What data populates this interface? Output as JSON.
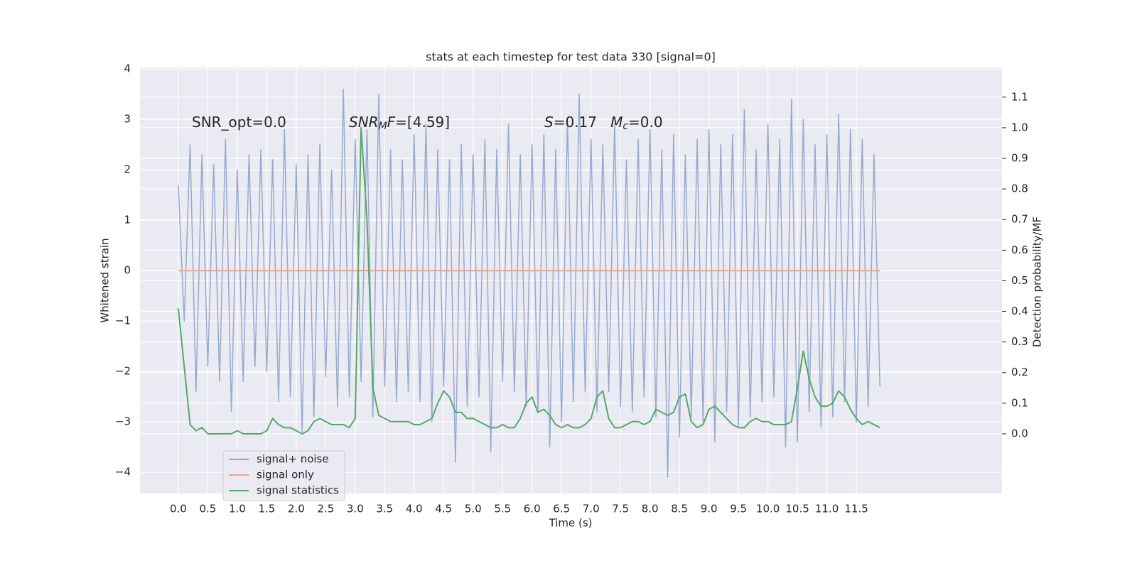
{
  "chart_data": {
    "type": "line",
    "title": "stats at each timestep for test data 330 [signal=0]",
    "xlabel": "Time (s)",
    "ylabel": "Whitened strain",
    "y2label": "Detection probability/MF",
    "xlim": [
      -0.65,
      13.97
    ],
    "ylim": [
      -4.42,
      4.03
    ],
    "y2lim": [
      -0.195,
      1.197
    ],
    "xticks": [
      {
        "value": 0,
        "label": "0.0"
      },
      0.5,
      {
        "value": 1,
        "label": "1.0"
      },
      1.5,
      {
        "value": 2,
        "label": "2.0"
      },
      2.5,
      {
        "value": 3,
        "label": "3.0"
      },
      3.5,
      {
        "value": 4,
        "label": "4.0"
      },
      4.5,
      {
        "value": 5,
        "label": "5.0"
      },
      5.5,
      {
        "value": 6,
        "label": "6.0"
      },
      6.5,
      {
        "value": 7,
        "label": "7.0"
      },
      7.5,
      {
        "value": 8,
        "label": "8.0"
      },
      8.5,
      {
        "value": 9,
        "label": "9.0"
      },
      9.5,
      {
        "value": 10,
        "label": "10.0"
      },
      10.5,
      {
        "value": 11,
        "label": "11.0"
      },
      11.5
    ],
    "yticks": [
      {
        "value": -4,
        "label": "−4"
      },
      {
        "value": -3,
        "label": "−3"
      },
      {
        "value": -2,
        "label": "−2"
      },
      {
        "value": -1,
        "label": "−1"
      },
      0,
      1,
      2,
      3,
      4
    ],
    "y2ticks": [
      {
        "value": 0,
        "label": "0.0"
      },
      0.1,
      0.2,
      0.3,
      0.4,
      0.5,
      0.6,
      0.7,
      0.8,
      0.9,
      {
        "value": 1,
        "label": "1.0"
      },
      1.1
    ],
    "grid": true,
    "legend": "lower left",
    "annotations": [
      [
        {
          "text": "SNR_opt=0.0"
        }
      ],
      [
        {
          "text": "SNR",
          "italic": true
        },
        {
          "text": "M",
          "italic": true,
          "sub": true
        },
        {
          "text": "F",
          "italic": true
        },
        {
          "text": "=[4.59]"
        }
      ],
      [
        {
          "text": "S",
          "italic": true
        },
        {
          "text": "=0.17   "
        },
        {
          "text": "M",
          "italic": true
        },
        {
          "text": "c",
          "italic": true,
          "sub": true
        },
        {
          "text": "=0.0"
        }
      ]
    ],
    "x": [
      0.0,
      0.1,
      0.2,
      0.3,
      0.4,
      0.5,
      0.6,
      0.7,
      0.8,
      0.9,
      1.0,
      1.1,
      1.2,
      1.3,
      1.4,
      1.5,
      1.6,
      1.7,
      1.8,
      1.9,
      2.0,
      2.1,
      2.2,
      2.3,
      2.4,
      2.5,
      2.6,
      2.7,
      2.8,
      2.9,
      3.0,
      3.1,
      3.2,
      3.3,
      3.4,
      3.5,
      3.6,
      3.7,
      3.8,
      3.9,
      4.0,
      4.1,
      4.2,
      4.3,
      4.4,
      4.5,
      4.6,
      4.7,
      4.8,
      4.9,
      5.0,
      5.1,
      5.2,
      5.3,
      5.4,
      5.5,
      5.6,
      5.7,
      5.8,
      5.9,
      6.0,
      6.1,
      6.2,
      6.3,
      6.4,
      6.5,
      6.6,
      6.7,
      6.8,
      6.9,
      7.0,
      7.1,
      7.2,
      7.3,
      7.4,
      7.5,
      7.6,
      7.7,
      7.8,
      7.9,
      8.0,
      8.1,
      8.2,
      8.3,
      8.4,
      8.5,
      8.6,
      8.7,
      8.8,
      8.9,
      9.0,
      9.1,
      9.2,
      9.3,
      9.4,
      9.5,
      9.6,
      9.7,
      9.8,
      9.9,
      10.0,
      10.1,
      10.2,
      10.3,
      10.4,
      10.5,
      10.6,
      10.7,
      10.8,
      10.9,
      11.0,
      11.1,
      11.2,
      11.3,
      11.4,
      11.5,
      11.6,
      11.7,
      11.8,
      11.9
    ],
    "series": [
      {
        "name": "signal+ noise",
        "color": "#98a9cf",
        "values": [
          1.7,
          -1.0,
          2.5,
          -2.4,
          2.3,
          -1.9,
          2.1,
          -2.2,
          2.6,
          -2.8,
          2.0,
          -2.2,
          2.3,
          -1.9,
          2.4,
          -2.0,
          2.2,
          -2.6,
          2.8,
          -2.5,
          2.1,
          -3.2,
          2.3,
          -2.9,
          2.5,
          -2.1,
          2.0,
          -2.7,
          3.6,
          -2.5,
          2.6,
          -2.2,
          2.8,
          -2.9,
          3.5,
          -2.3,
          2.4,
          -2.6,
          2.2,
          -2.4,
          2.7,
          -2.6,
          2.9,
          -3.0,
          2.4,
          -2.3,
          2.2,
          -3.8,
          2.5,
          -2.7,
          2.3,
          -2.5,
          2.6,
          -3.6,
          2.4,
          -2.2,
          2.9,
          -2.4,
          2.3,
          -2.7,
          2.5,
          -2.8,
          2.7,
          -3.5,
          2.4,
          -3.0,
          3.0,
          -2.6,
          3.5,
          -2.4,
          2.6,
          -2.8,
          2.5,
          -2.4,
          2.9,
          -2.7,
          2.2,
          -2.8,
          2.6,
          -2.5,
          2.8,
          -2.9,
          2.4,
          -4.1,
          2.7,
          -3.3,
          2.3,
          -2.9,
          2.6,
          -3.0,
          2.8,
          -3.4,
          2.5,
          -2.8,
          2.7,
          -3.1,
          3.2,
          -2.9,
          2.4,
          -2.6,
          2.9,
          -2.5,
          2.6,
          -3.5,
          3.4,
          -3.4,
          3.0,
          -2.8,
          2.5,
          -3.1,
          2.7,
          -2.9,
          3.1,
          -2.6,
          2.8,
          -3.0,
          2.6,
          -2.7,
          2.3,
          -2.3
        ]
      },
      {
        "name": "signal only",
        "color": "#e9a58a",
        "values": [
          0,
          0,
          0,
          0,
          0,
          0,
          0,
          0,
          0,
          0,
          0,
          0,
          0,
          0,
          0,
          0,
          0,
          0,
          0,
          0,
          0,
          0,
          0,
          0,
          0,
          0,
          0,
          0,
          0,
          0,
          0,
          0,
          0,
          0,
          0,
          0,
          0,
          0,
          0,
          0,
          0,
          0,
          0,
          0,
          0,
          0,
          0,
          0,
          0,
          0,
          0,
          0,
          0,
          0,
          0,
          0,
          0,
          0,
          0,
          0,
          0,
          0,
          0,
          0,
          0,
          0,
          0,
          0,
          0,
          0,
          0,
          0,
          0,
          0,
          0,
          0,
          0,
          0,
          0,
          0,
          0,
          0,
          0,
          0,
          0,
          0,
          0,
          0,
          0,
          0,
          0,
          0,
          0,
          0,
          0,
          0,
          0,
          0,
          0,
          0,
          0,
          0,
          0,
          0,
          0,
          0,
          0,
          0,
          0,
          0,
          0,
          0,
          0,
          0,
          0,
          0,
          0,
          0,
          0,
          0
        ]
      },
      {
        "name": "signal statistics",
        "color": "#55a868",
        "axis": "y2",
        "values": [
          0.41,
          0.22,
          0.03,
          0.01,
          0.02,
          0.0,
          0.0,
          0.0,
          0.0,
          0.0,
          0.01,
          0.0,
          0.0,
          0.0,
          0.0,
          0.01,
          0.05,
          0.03,
          0.02,
          0.02,
          0.01,
          0.0,
          0.01,
          0.04,
          0.05,
          0.04,
          0.03,
          0.03,
          0.03,
          0.02,
          0.05,
          1.0,
          0.7,
          0.15,
          0.06,
          0.05,
          0.04,
          0.04,
          0.04,
          0.04,
          0.03,
          0.03,
          0.04,
          0.05,
          0.1,
          0.14,
          0.12,
          0.07,
          0.07,
          0.05,
          0.05,
          0.04,
          0.03,
          0.02,
          0.02,
          0.03,
          0.02,
          0.02,
          0.05,
          0.1,
          0.12,
          0.07,
          0.08,
          0.06,
          0.03,
          0.02,
          0.03,
          0.02,
          0.02,
          0.03,
          0.05,
          0.12,
          0.14,
          0.05,
          0.02,
          0.02,
          0.03,
          0.04,
          0.04,
          0.03,
          0.04,
          0.08,
          0.07,
          0.06,
          0.07,
          0.12,
          0.13,
          0.04,
          0.02,
          0.03,
          0.08,
          0.09,
          0.07,
          0.05,
          0.03,
          0.02,
          0.02,
          0.04,
          0.05,
          0.04,
          0.04,
          0.03,
          0.03,
          0.03,
          0.04,
          0.15,
          0.27,
          0.18,
          0.12,
          0.09,
          0.09,
          0.1,
          0.14,
          0.12,
          0.08,
          0.05,
          0.03,
          0.04,
          0.03,
          0.02
        ]
      }
    ]
  }
}
